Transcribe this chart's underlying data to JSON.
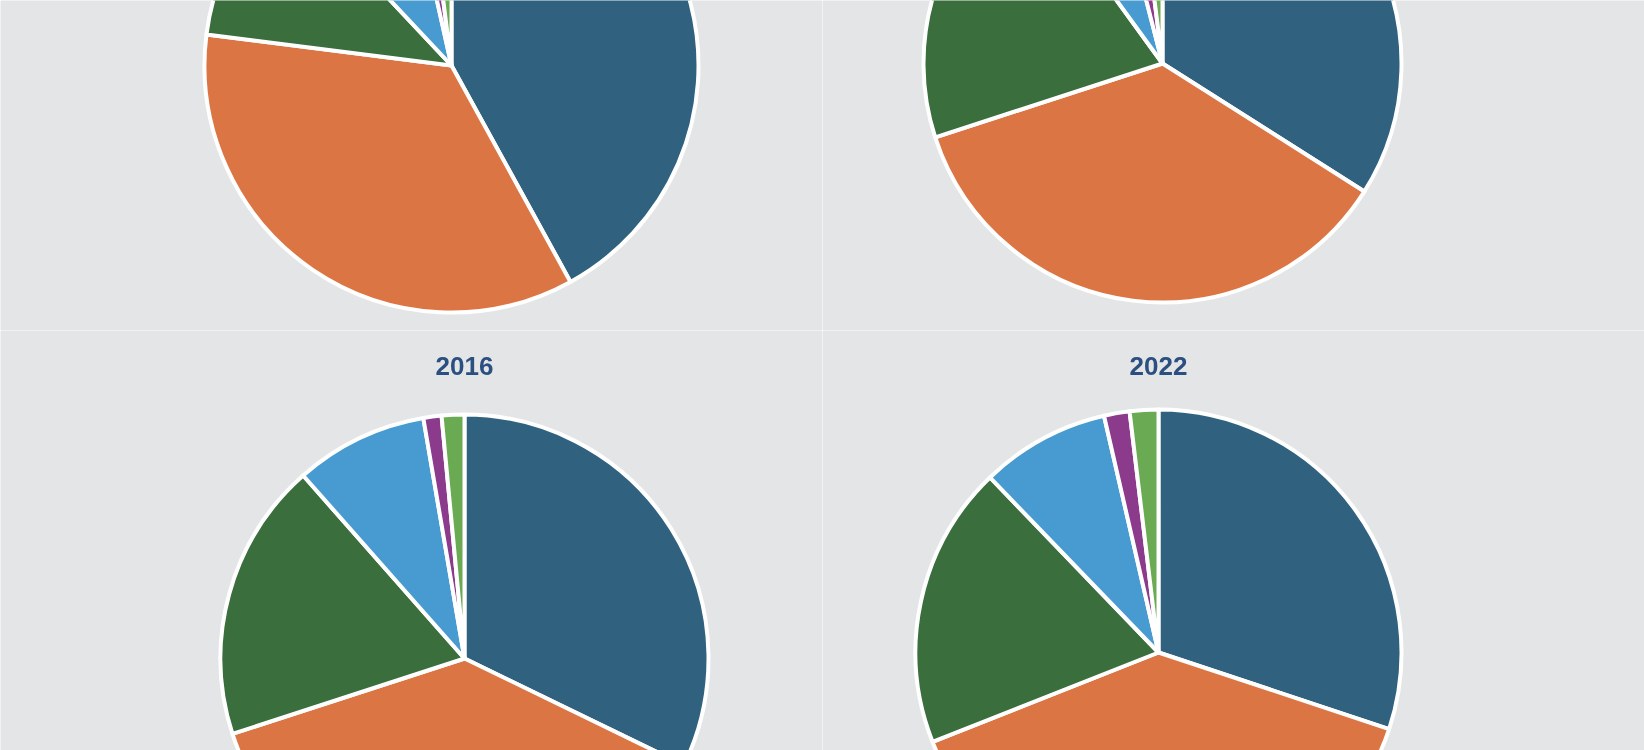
{
  "chart_data": [
    {
      "type": "pie",
      "categories": [
        null,
        null,
        null,
        null,
        null,
        null
      ],
      "values": [
        42,
        35,
        11,
        8.5,
        1.5,
        2
      ],
      "colors": [
        "#30627f",
        "#db7644",
        "#3a6e3c",
        "#489bd1",
        "#8b3a8c",
        "#6aaa53"
      ]
    },
    {
      "type": "pie",
      "categories": [
        null,
        null,
        null,
        null,
        null,
        null
      ],
      "values": [
        34,
        36,
        20,
        6,
        2,
        2
      ],
      "colors": [
        "#30627f",
        "#db7644",
        "#3a6e3c",
        "#489bd1",
        "#8b3a8c",
        "#6aaa53"
      ]
    },
    {
      "type": "pie",
      "title": "2016",
      "categories": [
        null,
        null,
        null,
        null,
        null,
        null
      ],
      "values": [
        32.2,
        37.8,
        18.5,
        8.8,
        1.2,
        1.5
      ],
      "colors": [
        "#30627f",
        "#db7644",
        "#3a6e3c",
        "#489bd1",
        "#8b3a8c",
        "#6aaa53"
      ]
    },
    {
      "type": "pie",
      "title": "2022",
      "categories": [
        null,
        null,
        null,
        null,
        null,
        null
      ],
      "values": [
        30.1,
        38.9,
        18.8,
        8.6,
        1.7,
        1.9
      ],
      "colors": [
        "#30627f",
        "#db7644",
        "#3a6e3c",
        "#489bd1",
        "#8b3a8c",
        "#6aaa53"
      ]
    }
  ]
}
